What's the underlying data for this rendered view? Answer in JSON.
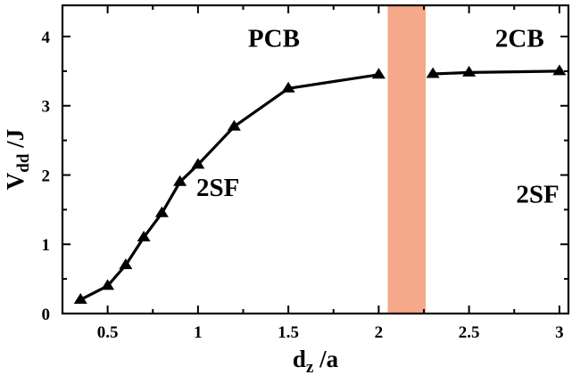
{
  "chart_data": {
    "type": "line",
    "title": "",
    "xlabel": {
      "main": "d",
      "sub": "z",
      "rest": " /a"
    },
    "ylabel": {
      "main": "V",
      "sub": "dd",
      "rest": " /J"
    },
    "xlim": [
      0.25,
      3.05
    ],
    "ylim": [
      0,
      4.45
    ],
    "xticks": [
      0.5,
      1,
      1.5,
      2,
      2.5,
      3
    ],
    "xtick_labels": [
      "0.5",
      "1",
      "1.5",
      "2",
      "2.5",
      "3"
    ],
    "yticks": [
      0,
      1,
      2,
      3,
      4
    ],
    "ytick_labels": [
      "0",
      "1",
      "2",
      "3",
      "4"
    ],
    "x_minor_ticks": [
      0.25,
      0.75,
      1.25,
      1.75,
      2.25,
      2.75
    ],
    "y_minor_ticks": [
      0.5,
      1.5,
      2.5,
      3.5
    ],
    "grid": false,
    "shaded_band": {
      "x_range": [
        2.05,
        2.26
      ],
      "color": "#f5a88a"
    },
    "series": [
      {
        "marker": "triangle",
        "color": "#000000",
        "x": [
          0.35,
          0.5,
          0.6,
          0.7,
          0.8,
          0.9,
          1.0,
          1.2,
          1.5,
          2.0
        ],
        "y": [
          0.2,
          0.4,
          0.7,
          1.1,
          1.45,
          1.9,
          2.15,
          2.7,
          3.25,
          3.45
        ]
      },
      {
        "marker": "triangle",
        "color": "#000000",
        "x": [
          2.3,
          2.5,
          3.0
        ],
        "y": [
          3.46,
          3.48,
          3.5
        ]
      }
    ],
    "annotations": [
      {
        "text": "PCB",
        "x": 1.42,
        "y": 3.85
      },
      {
        "text": "2CB",
        "x": 2.78,
        "y": 3.85
      },
      {
        "text": "2SF",
        "x": 1.11,
        "y": 1.7
      },
      {
        "text": "2SF",
        "x": 2.88,
        "y": 1.6
      }
    ]
  }
}
